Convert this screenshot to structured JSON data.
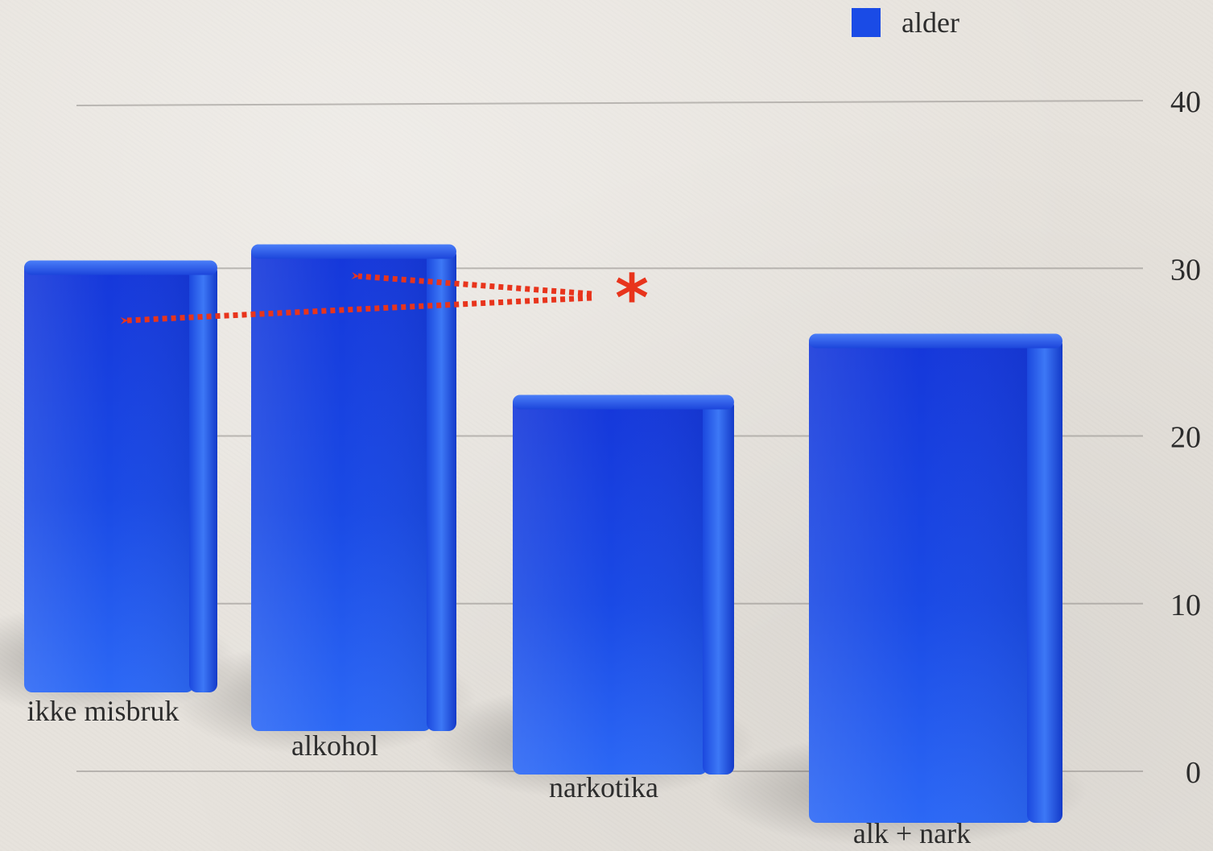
{
  "chart_data": {
    "type": "bar",
    "categories": [
      "ikke misbruk",
      "alkohol",
      "narkotika",
      "alk + nark"
    ],
    "series": [
      {
        "name": "alder",
        "values": [
          29,
          31,
          23,
          25
        ],
        "color": "#1a4be6"
      }
    ],
    "yticks": [
      "0",
      "10",
      "20",
      "30",
      "40"
    ],
    "ylim": [
      0,
      40
    ],
    "grid": true,
    "legend_position": "top-right",
    "annotation": {
      "text": "*",
      "color": "#e8341c",
      "style": "dotted arrows pointing to bars",
      "targets": [
        "ikke misbruk",
        "alkohol"
      ]
    },
    "title": "",
    "xlabel": "",
    "ylabel": ""
  }
}
